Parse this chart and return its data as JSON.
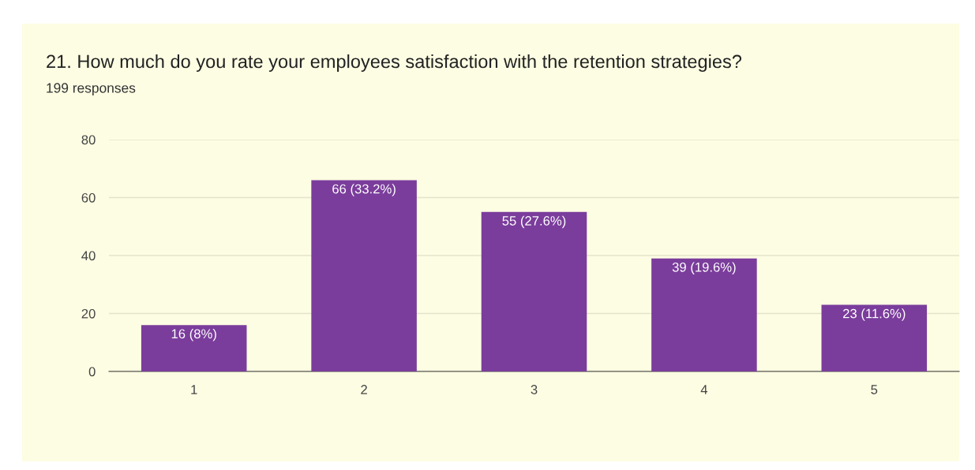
{
  "chart_data": {
    "type": "bar",
    "title": "21. How much do you rate your employees satisfaction with the retention strategies?",
    "subtitle": "199 responses",
    "categories": [
      "1",
      "2",
      "3",
      "4",
      "5"
    ],
    "values": [
      16,
      66,
      55,
      39,
      23
    ],
    "color": "#7b3d9c",
    "value_labels": [
      "16 (8%)",
      "66 (33.2%)",
      "55 (27.6%)",
      "39 (19.6%)",
      "23 (11.6%)"
    ],
    "ylim": [
      0,
      80
    ],
    "yticks": [
      0,
      20,
      40,
      60,
      80
    ],
    "grid": "y",
    "legend": false
  }
}
